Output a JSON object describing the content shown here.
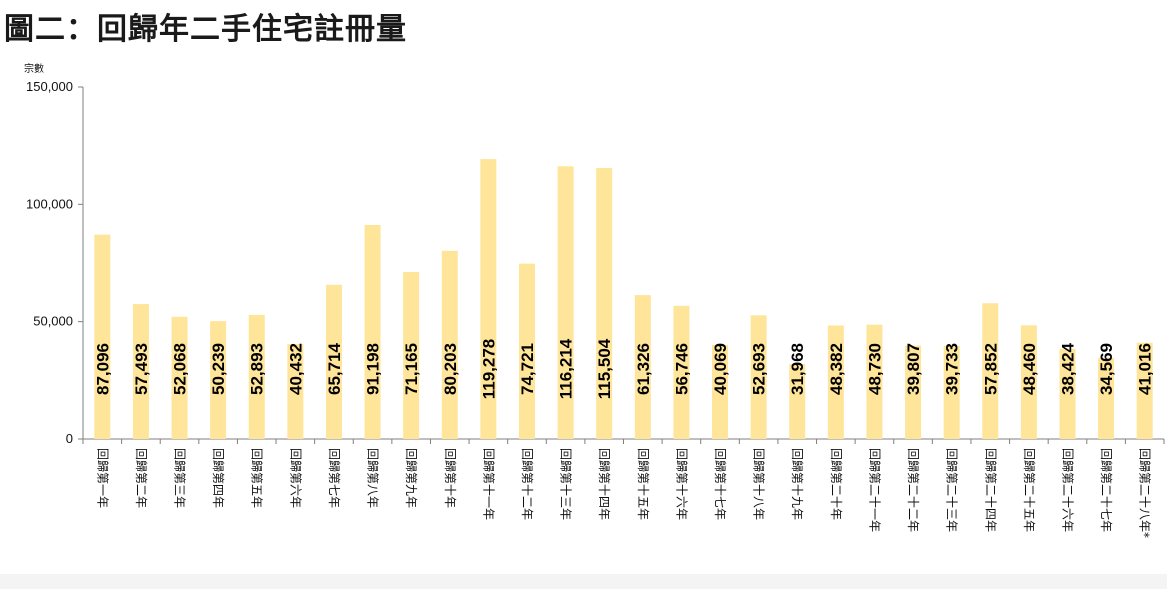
{
  "chart_data": {
    "type": "bar",
    "title": "圖二：回歸年二手住宅註冊量",
    "ylabel": "宗數",
    "ylim": [
      0,
      150000
    ],
    "yticks": [
      0,
      50000,
      100000,
      150000
    ],
    "ytick_labels": [
      "0",
      "50,000",
      "100,000",
      "150,000"
    ],
    "grid": false,
    "bar_color": "#FFE599",
    "categories": [
      "回歸第一年",
      "回歸第二年",
      "回歸第三年",
      "回歸第四年",
      "回歸第五年",
      "回歸第六年",
      "回歸第七年",
      "回歸第八年",
      "回歸第九年",
      "回歸第十年",
      "回歸第十一年",
      "回歸第十二年",
      "回歸第十三年",
      "回歸第十四年",
      "回歸第十五年",
      "回歸第十六年",
      "回歸第十七年",
      "回歸第十八年",
      "回歸第十九年",
      "回歸第二十年",
      "回歸第二十一年",
      "回歸第二十二年",
      "回歸第二十三年",
      "回歸第二十四年",
      "回歸第二十五年",
      "回歸第二十六年",
      "回歸第二十七年",
      "回歸第二十八年*"
    ],
    "values": [
      87096,
      57493,
      52068,
      50239,
      52893,
      40432,
      65714,
      91198,
      71165,
      80203,
      119278,
      74721,
      116214,
      115504,
      61326,
      56746,
      40069,
      52693,
      31968,
      48382,
      48730,
      39807,
      39733,
      57852,
      48460,
      38424,
      34569,
      41016
    ],
    "value_labels": [
      "87,096",
      "57,493",
      "52,068",
      "50,239",
      "52,893",
      "40,432",
      "65,714",
      "91,198",
      "71,165",
      "80,203",
      "119,278",
      "74,721",
      "116,214",
      "115,504",
      "61,326",
      "56,746",
      "40,069",
      "52,693",
      "31,968",
      "48,382",
      "48,730",
      "39,807",
      "39,733",
      "57,852",
      "48,460",
      "38,424",
      "34,569",
      "41,016"
    ]
  }
}
